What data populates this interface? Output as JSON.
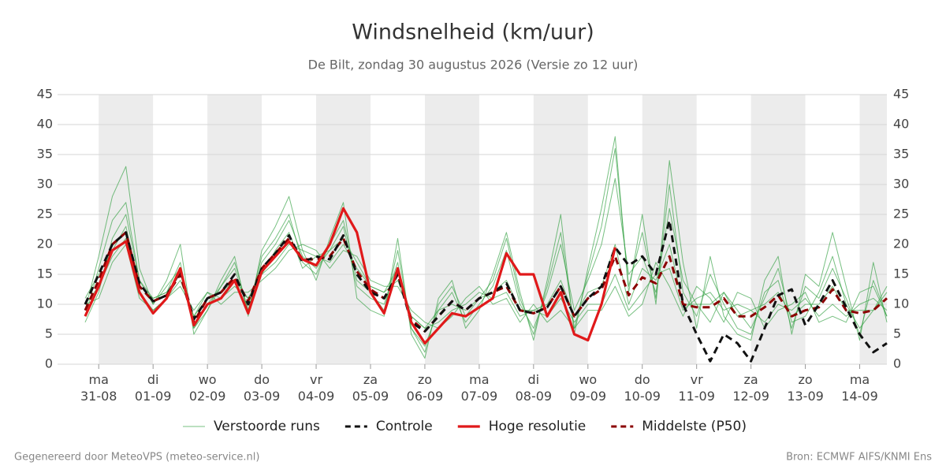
{
  "chart_data": {
    "type": "line",
    "title": "Windsnelheid (km/uur)",
    "subtitle": "De Bilt, zondag 30 augustus 2026 (Versie zo 12 uur)",
    "footer_left": "Gegenereerd door MeteoVPS (meteo-service.nl)",
    "footer_right": "Bron: ECMWF AIFS/KNMI Ens",
    "xlim": [
      0.75,
      15.5
    ],
    "xticks": [
      {
        "value": 1,
        "label": "ma 31-08"
      },
      {
        "value": 2,
        "label": "di 01-09"
      },
      {
        "value": 3,
        "label": "wo 02-09"
      },
      {
        "value": 4,
        "label": "do 03-09"
      },
      {
        "value": 5,
        "label": "vr 04-09"
      },
      {
        "value": 6,
        "label": "za 05-09"
      },
      {
        "value": 7,
        "label": "zo 06-09"
      },
      {
        "value": 8,
        "label": "ma 07-09"
      },
      {
        "value": 9,
        "label": "di 08-09"
      },
      {
        "value": 10,
        "label": "wo 09-09"
      },
      {
        "value": 11,
        "label": "do 10-09"
      },
      {
        "value": 12,
        "label": "vr 11-09"
      },
      {
        "value": 13,
        "label": "za 12-09"
      },
      {
        "value": 14,
        "label": "zo 13-09"
      },
      {
        "value": 15,
        "label": "ma 14-09"
      }
    ],
    "ylim": [
      0,
      45
    ],
    "yticks": [
      0,
      5,
      10,
      15,
      20,
      25,
      30,
      35,
      40,
      45
    ],
    "grid": true,
    "x": [
      0.75,
      1,
      1.25,
      1.5,
      1.75,
      2,
      2.25,
      2.5,
      2.75,
      3,
      3.25,
      3.5,
      3.75,
      4,
      4.25,
      4.5,
      4.75,
      5,
      5.25,
      5.5,
      5.75,
      6,
      6.25,
      6.5,
      6.75,
      7,
      7.25,
      7.5,
      7.75,
      8,
      8.25,
      8.5,
      8.75,
      9,
      9.25,
      9.5,
      9.75,
      10,
      10.25,
      10.5,
      10.75,
      11,
      11.25,
      11.5,
      11.75,
      12,
      12.25,
      12.5,
      12.75,
      13,
      13.25,
      13.5,
      13.75,
      14,
      14.25,
      14.5,
      14.75,
      15,
      15.25,
      15.5
    ],
    "series": [
      {
        "name": "Verstoorde runs",
        "color": "#2e9e3e",
        "style": "thin",
        "runs": [
          [
            8,
            16,
            24,
            27,
            14,
            11,
            12,
            17,
            6,
            10,
            13,
            16,
            9,
            17,
            20,
            24,
            18,
            16,
            19,
            23,
            13,
            11,
            10,
            17,
            6,
            3,
            9,
            12,
            7,
            10,
            13,
            19,
            10,
            6,
            12,
            20,
            9,
            14,
            20,
            31,
            15,
            18,
            12,
            26,
            14,
            10,
            7,
            12,
            9,
            6,
            11,
            16,
            7,
            8,
            12,
            18,
            10,
            6,
            9,
            13
          ],
          [
            10,
            13,
            18,
            21,
            12,
            9,
            11,
            14,
            8,
            12,
            11,
            13,
            11,
            15,
            17,
            20,
            19,
            18,
            17,
            20,
            16,
            13,
            12,
            14,
            8,
            6,
            7,
            9,
            10,
            12,
            11,
            12,
            8,
            9,
            8,
            11,
            7,
            10,
            10,
            15,
            9,
            12,
            15,
            16,
            9,
            11,
            12,
            9,
            10,
            9,
            7,
            10,
            9,
            11,
            8,
            10,
            8,
            10,
            11,
            9
          ],
          [
            7,
            12,
            21,
            25,
            14,
            10,
            13,
            16,
            6,
            9,
            13,
            17,
            9,
            18,
            21,
            25,
            17,
            15,
            20,
            24,
            14,
            12,
            9,
            19,
            6,
            2,
            10,
            13,
            8,
            11,
            14,
            21,
            11,
            5,
            13,
            22,
            6,
            15,
            23,
            36,
            13,
            22,
            11,
            30,
            12,
            8,
            15,
            10,
            6,
            5,
            12,
            14,
            6,
            13,
            11,
            16,
            11,
            5,
            14,
            8
          ],
          [
            11,
            15,
            19,
            23,
            13,
            11,
            12,
            15,
            8,
            11,
            12,
            14,
            11,
            15,
            19,
            22,
            16,
            18,
            19,
            21,
            17,
            13,
            12,
            16,
            8,
            6,
            9,
            10,
            9,
            11,
            12,
            14,
            9,
            9,
            10,
            14,
            8,
            12,
            13,
            20,
            10,
            16,
            14,
            20,
            10,
            10,
            10,
            12,
            8,
            9,
            10,
            12,
            8,
            10,
            10,
            13,
            9,
            9,
            9,
            12
          ],
          [
            9,
            18,
            28,
            33,
            16,
            10,
            14,
            20,
            5,
            9,
            14,
            18,
            8,
            19,
            23,
            28,
            19,
            14,
            21,
            27,
            11,
            9,
            8,
            21,
            5,
            1,
            11,
            14,
            6,
            9,
            15,
            22,
            12,
            4,
            14,
            25,
            5,
            16,
            26,
            38,
            12,
            25,
            10,
            34,
            17,
            6,
            18,
            8,
            5,
            4,
            14,
            18,
            5,
            15,
            13,
            22,
            13,
            4,
            17,
            7
          ],
          [
            10,
            11,
            17,
            20,
            11,
            9,
            11,
            13,
            9,
            12,
            10,
            12,
            12,
            14,
            16,
            19,
            20,
            19,
            16,
            19,
            18,
            14,
            13,
            13,
            9,
            7,
            6,
            8,
            11,
            13,
            10,
            11,
            7,
            10,
            7,
            9,
            6,
            9,
            9,
            13,
            8,
            10,
            17,
            13,
            8,
            13,
            11,
            7,
            12,
            11,
            6,
            9,
            10,
            12,
            7,
            8,
            7,
            12,
            13,
            8
          ]
        ]
      },
      {
        "name": "Controle",
        "color": "#111111",
        "style": "dashed",
        "values": [
          10,
          15,
          20,
          22,
          13.5,
          10.5,
          11.5,
          15.5,
          7.5,
          11,
          12,
          15,
          10,
          16,
          18.5,
          21.5,
          17,
          18,
          17.5,
          21.5,
          15,
          12,
          11,
          15,
          7,
          5.5,
          8,
          10.5,
          9,
          11,
          12,
          13.5,
          9,
          8.5,
          9.5,
          13,
          8,
          11,
          13,
          19.5,
          16.5,
          18,
          15,
          24,
          10,
          5,
          0.5,
          5,
          3.5,
          0.5,
          6,
          11.5,
          12.5,
          6.5,
          10,
          14,
          9.5,
          5,
          2,
          3.5
        ]
      },
      {
        "name": "Hoge resolutie",
        "color": "#e0191a",
        "style": "solid",
        "values": [
          8,
          13,
          19,
          20.5,
          12,
          8.5,
          11,
          16,
          6.5,
          10,
          11,
          14,
          8.5,
          15.5,
          18,
          20.5,
          17.5,
          16.5,
          20,
          26,
          22,
          12,
          8.5,
          16,
          7,
          3.5,
          6,
          8.5,
          8,
          9.5,
          11,
          18.5,
          15,
          15,
          8,
          12,
          5,
          4,
          10,
          19.5,
          null,
          null,
          null,
          null,
          null,
          null,
          null,
          null,
          null,
          null,
          null,
          null,
          null,
          null,
          null,
          null,
          null,
          null,
          null,
          null
        ]
      },
      {
        "name": "Middelste (P50)",
        "color": "#8b0000",
        "style": "dashed",
        "values": [
          9,
          14,
          20,
          22,
          13,
          10.5,
          11.5,
          15,
          7,
          11,
          12,
          14.5,
          10.5,
          16,
          18.5,
          21,
          17.5,
          17.5,
          18,
          21,
          15.5,
          12.5,
          11,
          15,
          7.5,
          5.5,
          8,
          10.5,
          9,
          11,
          12,
          13,
          9,
          8.5,
          9.5,
          13,
          8,
          11,
          12.5,
          18,
          11.5,
          14.5,
          13.5,
          18,
          10,
          9.5,
          9.5,
          11,
          8,
          8,
          9.5,
          11.5,
          8,
          9,
          9.5,
          12.5,
          9,
          8.5,
          9,
          11
        ]
      }
    ]
  }
}
